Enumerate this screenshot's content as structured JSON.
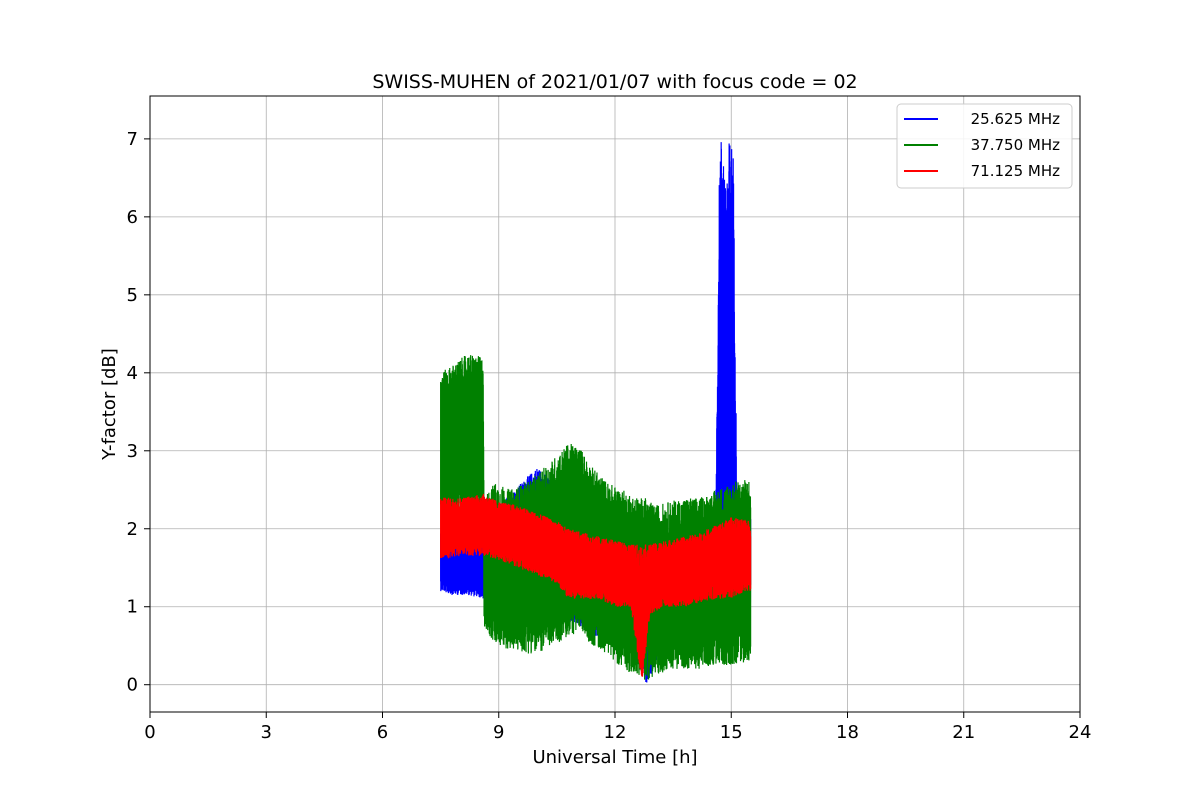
{
  "chart_data": {
    "type": "line",
    "title": "SWISS-MUHEN of 2021/01/07 with focus code = 02",
    "xlabel": "Universal Time [h]",
    "ylabel": "Y-factor [dB]",
    "xlim": [
      0,
      24
    ],
    "ylim": [
      -0.35,
      7.55
    ],
    "x_ticks": [
      0,
      3,
      6,
      9,
      12,
      15,
      18,
      21,
      24
    ],
    "y_ticks": [
      0,
      1,
      2,
      3,
      4,
      5,
      6,
      7
    ],
    "grid": true,
    "legend_position": "top-right",
    "series": [
      {
        "name": "25.625 MHz",
        "color": "#0000ff",
        "envelope": [
          [
            7.5,
            1.2,
            2.0
          ],
          [
            7.8,
            1.15,
            1.85
          ],
          [
            8.2,
            1.15,
            1.9
          ],
          [
            8.6,
            1.1,
            1.95
          ],
          [
            8.8,
            1.2,
            2.2
          ],
          [
            9.2,
            1.3,
            2.4
          ],
          [
            9.6,
            1.3,
            2.6
          ],
          [
            10.0,
            1.25,
            2.8
          ],
          [
            10.4,
            1.1,
            2.6
          ],
          [
            10.8,
            0.8,
            2.4
          ],
          [
            11.2,
            0.7,
            2.2
          ],
          [
            11.6,
            0.6,
            2.0
          ],
          [
            12.0,
            0.5,
            1.95
          ],
          [
            12.4,
            0.4,
            1.9
          ],
          [
            12.7,
            0.3,
            1.8
          ],
          [
            12.8,
            0.0,
            1.8
          ],
          [
            13.2,
            0.4,
            1.9
          ],
          [
            13.6,
            0.5,
            1.9
          ],
          [
            14.0,
            0.5,
            2.0
          ],
          [
            14.4,
            0.6,
            2.1
          ],
          [
            14.6,
            0.7,
            2.3
          ],
          [
            14.7,
            0.8,
            6.9
          ],
          [
            14.78,
            0.8,
            7.18
          ],
          [
            14.85,
            0.8,
            6.4
          ],
          [
            14.95,
            0.8,
            7.0
          ],
          [
            15.05,
            0.8,
            6.95
          ],
          [
            15.15,
            0.9,
            2.4
          ],
          [
            15.5,
            1.0,
            2.3
          ]
        ]
      },
      {
        "name": "37.750 MHz",
        "color": "#008000",
        "envelope": [
          [
            7.5,
            2.3,
            4.0
          ],
          [
            7.8,
            2.2,
            4.1
          ],
          [
            8.2,
            2.2,
            4.25
          ],
          [
            8.6,
            2.2,
            4.2
          ],
          [
            8.62,
            0.75,
            2.4
          ],
          [
            8.9,
            0.5,
            2.6
          ],
          [
            9.3,
            0.45,
            2.5
          ],
          [
            9.7,
            0.4,
            2.6
          ],
          [
            10.0,
            0.4,
            2.7
          ],
          [
            10.4,
            0.5,
            2.9
          ],
          [
            10.8,
            0.6,
            3.1
          ],
          [
            11.1,
            0.7,
            3.05
          ],
          [
            11.4,
            0.5,
            2.8
          ],
          [
            11.8,
            0.4,
            2.6
          ],
          [
            12.2,
            0.2,
            2.5
          ],
          [
            12.6,
            0.1,
            2.4
          ],
          [
            12.8,
            0.05,
            2.4
          ],
          [
            13.0,
            0.1,
            2.3
          ],
          [
            13.4,
            0.2,
            2.35
          ],
          [
            13.8,
            0.2,
            2.4
          ],
          [
            14.2,
            0.2,
            2.4
          ],
          [
            14.6,
            0.25,
            2.5
          ],
          [
            15.0,
            0.25,
            2.6
          ],
          [
            15.5,
            0.3,
            2.65
          ]
        ]
      },
      {
        "name": "71.125 MHz",
        "color": "#ff0000",
        "envelope": [
          [
            7.5,
            1.6,
            2.4
          ],
          [
            8.0,
            1.65,
            2.4
          ],
          [
            8.6,
            1.65,
            2.45
          ],
          [
            9.0,
            1.6,
            2.35
          ],
          [
            9.5,
            1.5,
            2.3
          ],
          [
            10.0,
            1.4,
            2.2
          ],
          [
            10.5,
            1.3,
            2.1
          ],
          [
            10.8,
            1.1,
            2.0
          ],
          [
            11.2,
            1.1,
            1.95
          ],
          [
            11.6,
            1.1,
            1.9
          ],
          [
            12.0,
            1.0,
            1.85
          ],
          [
            12.4,
            1.0,
            1.8
          ],
          [
            12.7,
            0.0,
            1.8
          ],
          [
            12.9,
            0.9,
            1.8
          ],
          [
            13.3,
            1.0,
            1.85
          ],
          [
            13.8,
            1.0,
            1.9
          ],
          [
            14.2,
            1.05,
            1.95
          ],
          [
            14.6,
            1.1,
            2.05
          ],
          [
            15.0,
            1.1,
            2.15
          ],
          [
            15.5,
            1.2,
            2.1
          ]
        ]
      }
    ]
  }
}
